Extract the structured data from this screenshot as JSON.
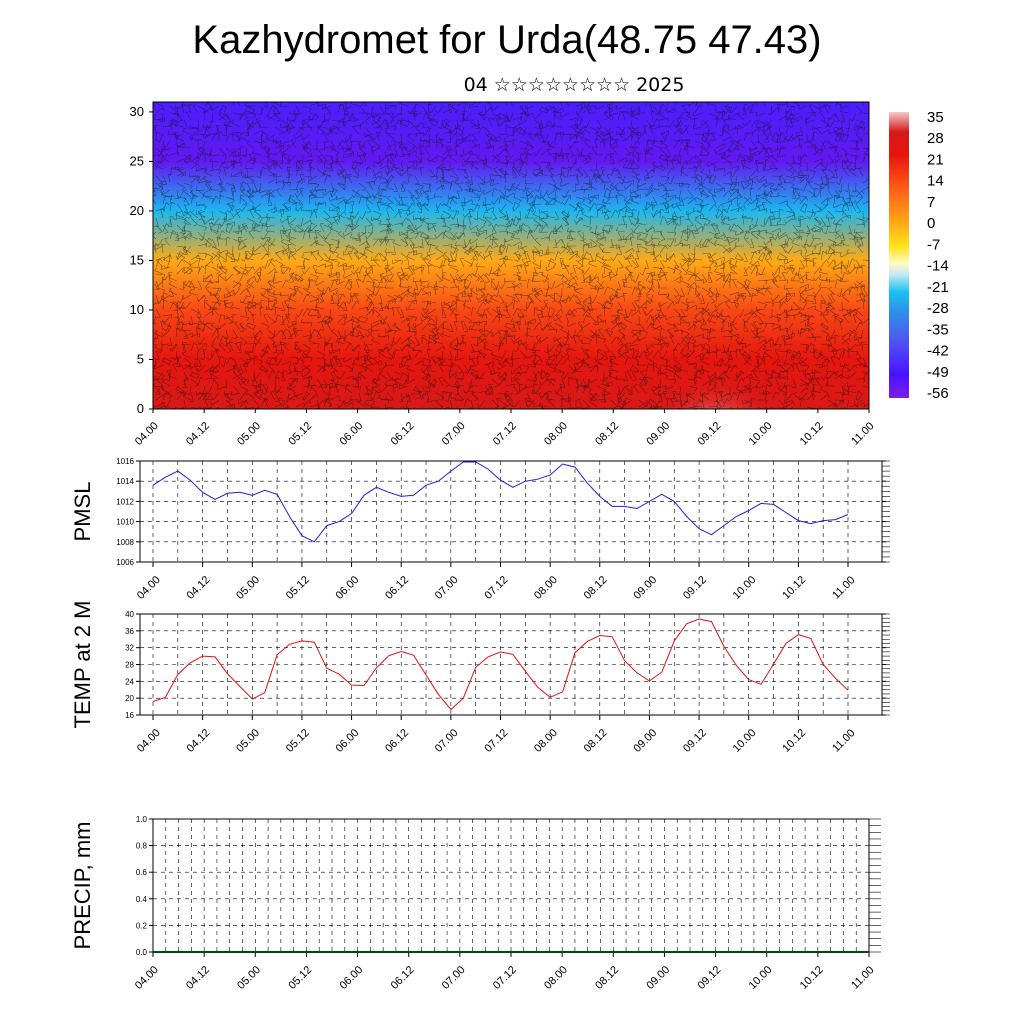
{
  "header": {
    "title": "Kazhydromet for Urda(48.75 47.43)",
    "subtitle": "04 ☆☆☆☆☆☆☆☆ 2025"
  },
  "colors": {
    "pmsl_line": "#1f1fe0",
    "temp_line": "#e01414",
    "precip_line": "#004d00"
  },
  "chart_data": [
    {
      "type": "heatmap",
      "id": "cross-section",
      "title": "",
      "xlabel": "",
      "ylabel": "",
      "ylim": [
        0,
        31
      ],
      "yticks": [
        0,
        5,
        10,
        15,
        20,
        25,
        30
      ],
      "x_tick_labels": [
        "04.00",
        "04.12",
        "05.00",
        "05.12",
        "06.00",
        "06.12",
        "07.00",
        "07.12",
        "08.00",
        "08.12",
        "09.00",
        "09.12",
        "10.00",
        "10.12",
        "11.00"
      ],
      "colorbar_labels": [
        "35",
        "28",
        "21",
        "14",
        "7",
        "0",
        "-7",
        "-14",
        "-21",
        "-28",
        "-35",
        "-42",
        "-49",
        "-56"
      ],
      "colorbar_range": [
        -60,
        38
      ],
      "overlay": "wind barbs",
      "values_by_level": [
        {
          "level": 0,
          "temp": 30
        },
        {
          "level": 5,
          "temp": 24
        },
        {
          "level": 10,
          "temp": 15
        },
        {
          "level": 15,
          "temp": 0
        },
        {
          "level": 20,
          "temp": -25
        },
        {
          "level": 25,
          "temp": -56
        },
        {
          "level": 31,
          "temp": -50
        }
      ],
      "warm_cores": [
        {
          "time": "05.12",
          "temp": 34
        },
        {
          "time": "08.12",
          "temp": 35
        },
        {
          "time": "09.12",
          "temp": 38
        },
        {
          "time": "10.12",
          "temp": 34
        }
      ]
    },
    {
      "type": "line",
      "id": "pmsl",
      "ylabel": "PMSL",
      "ylim": [
        1006,
        1016
      ],
      "yticks": [
        1006,
        1008,
        1010,
        1012,
        1014,
        1016
      ],
      "x_tick_labels": [
        "04.00",
        "04.12",
        "05.00",
        "05.12",
        "06.00",
        "06.12",
        "07.00",
        "07.12",
        "08.00",
        "08.12",
        "09.00",
        "09.12",
        "10.00",
        "10.12",
        "11.00"
      ],
      "x_hours": [
        0,
        3,
        6,
        9,
        12,
        15,
        18,
        21,
        24,
        27,
        30,
        33,
        36,
        39,
        42,
        45,
        48,
        51,
        54,
        57,
        60,
        63,
        66,
        69,
        72,
        75,
        78,
        81,
        84,
        87,
        90,
        93,
        96,
        99,
        102,
        105,
        108,
        111,
        114,
        117,
        120,
        123,
        126,
        129,
        132,
        135,
        138,
        141,
        144,
        147,
        150,
        153,
        156,
        159,
        162,
        165,
        168
      ],
      "values": [
        1013.6,
        1014.4,
        1015.0,
        1014.1,
        1012.9,
        1012.2,
        1012.8,
        1012.9,
        1012.6,
        1013.1,
        1012.7,
        1010.5,
        1008.6,
        1008.0,
        1009.6,
        1010.0,
        1010.8,
        1012.6,
        1013.4,
        1012.9,
        1012.5,
        1012.6,
        1013.6,
        1014.0,
        1015.0,
        1015.9,
        1015.9,
        1015.2,
        1014.1,
        1013.4,
        1014.0,
        1014.2,
        1014.6,
        1015.7,
        1015.4,
        1013.8,
        1012.5,
        1011.5,
        1011.5,
        1011.3,
        1012.0,
        1012.7,
        1012.0,
        1010.5,
        1009.3,
        1008.7,
        1009.6,
        1010.5,
        1011.1,
        1011.8,
        1011.7,
        1010.9,
        1010.1,
        1009.8,
        1010.1,
        1010.2,
        1010.7
      ]
    },
    {
      "type": "line",
      "id": "temp",
      "ylabel": "TEMP at 2 M",
      "ylim": [
        16,
        40
      ],
      "yticks": [
        16,
        20,
        24,
        28,
        32,
        36,
        40
      ],
      "x_tick_labels": [
        "04.00",
        "04.12",
        "05.00",
        "05.12",
        "06.00",
        "06.12",
        "07.00",
        "07.12",
        "08.00",
        "08.12",
        "09.00",
        "09.12",
        "10.00",
        "10.12",
        "11.00"
      ],
      "x_hours": [
        0,
        3,
        6,
        9,
        12,
        15,
        18,
        21,
        24,
        27,
        30,
        33,
        36,
        39,
        42,
        45,
        48,
        51,
        54,
        57,
        60,
        63,
        66,
        69,
        72,
        75,
        78,
        81,
        84,
        87,
        90,
        93,
        96,
        99,
        102,
        105,
        108,
        111,
        114,
        117,
        120,
        123,
        126,
        129,
        132,
        135,
        138,
        141,
        144,
        147,
        150,
        153,
        156,
        159,
        162,
        165,
        168
      ],
      "values": [
        19.2,
        20.2,
        25.6,
        28.4,
        30.0,
        29.8,
        25.8,
        22.8,
        19.8,
        21.3,
        30.3,
        32.8,
        33.6,
        33.3,
        27.1,
        25.7,
        23.1,
        23.0,
        27.2,
        30.1,
        31.1,
        30.2,
        25.5,
        20.9,
        17.3,
        20.0,
        27.3,
        29.8,
        31.0,
        30.4,
        26.4,
        22.6,
        20.2,
        21.5,
        30.8,
        33.5,
        34.9,
        34.6,
        28.9,
        26.0,
        24.1,
        26.2,
        33.6,
        37.7,
        38.8,
        38.2,
        32.3,
        27.8,
        24.4,
        23.3,
        28.1,
        33.0,
        35.1,
        34.2,
        28.0,
        24.7,
        21.9
      ]
    },
    {
      "type": "line",
      "id": "precip",
      "ylabel": "PRECIP, mm",
      "ylim": [
        0,
        1
      ],
      "yticks": [
        0.0,
        0.2,
        0.4,
        0.6,
        0.8,
        1.0
      ],
      "ytick_labels": [
        "0.0",
        "0.2",
        "0.4",
        "0.6",
        "0.8",
        "1.0"
      ],
      "x_tick_labels": [
        "04.00",
        "04.12",
        "05.00",
        "05.12",
        "06.00",
        "06.12",
        "07.00",
        "07.12",
        "08.00",
        "08.12",
        "09.00",
        "09.12",
        "10.00",
        "10.12",
        "11.00"
      ],
      "values": [
        0,
        0
      ]
    }
  ]
}
